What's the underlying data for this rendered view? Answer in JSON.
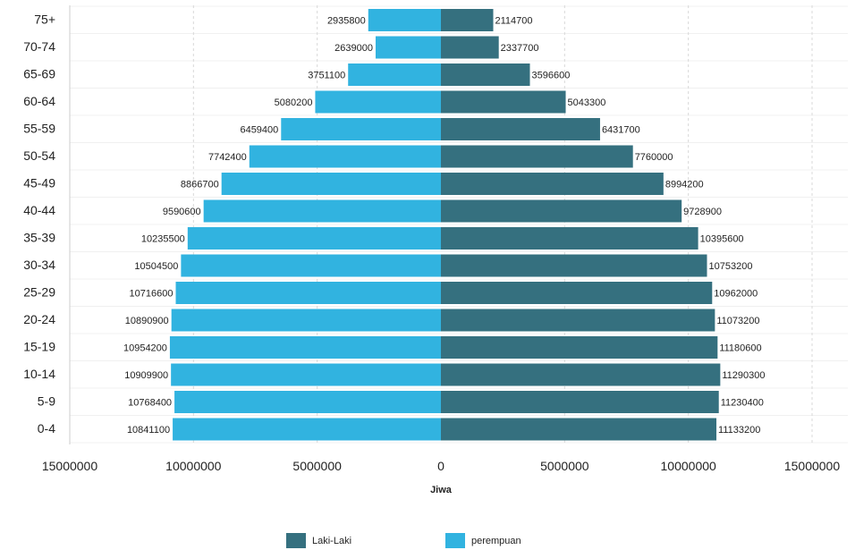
{
  "chart_data": {
    "type": "bar",
    "orientation": "horizontal",
    "layout": "population-pyramid",
    "categories": [
      "0-4",
      "5-9",
      "10-14",
      "15-19",
      "20-24",
      "25-29",
      "30-34",
      "35-39",
      "40-44",
      "45-49",
      "50-54",
      "55-59",
      "60-64",
      "65-69",
      "70-74",
      "75+"
    ],
    "series": [
      {
        "name": "Laki-Laki",
        "color": "#35707f",
        "side": "right",
        "values": [
          11133200,
          11230400,
          11290300,
          11180600,
          11073200,
          10962000,
          10753200,
          10395600,
          9728900,
          8994200,
          7760000,
          6431700,
          5043300,
          3596600,
          2337700,
          2114700
        ]
      },
      {
        "name": "perempuan",
        "color": "#31b3e0",
        "side": "left",
        "values": [
          10841100,
          10768400,
          10909900,
          10954200,
          10890900,
          10716600,
          10504500,
          10235500,
          9590600,
          8866700,
          7742400,
          6459400,
          5080200,
          3751100,
          2639000,
          2935800
        ]
      }
    ],
    "x_ticks": [
      "15000000",
      "10000000",
      "5000000",
      "0",
      "5000000",
      "10000000",
      "15000000"
    ],
    "xlim": [
      -15000000,
      15000000
    ],
    "xlabel": "Jiwa",
    "ylabel": "",
    "title": "",
    "grid": true,
    "legend_position": "bottom"
  }
}
